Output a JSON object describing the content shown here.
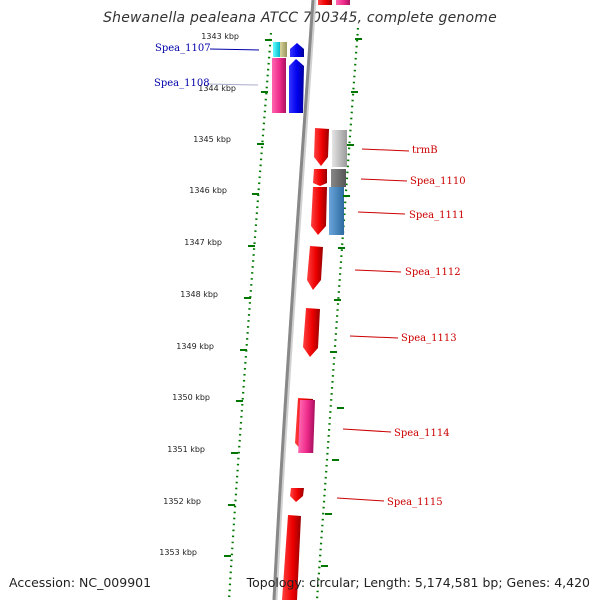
{
  "title": "Shewanella pealeana ATCC 700345, complete genome",
  "accession": "Accession: NC_009901",
  "topology": "Topology: circular; Length: 5,174,581 bp; Genes: 4,420",
  "colors": {
    "forward_label": "#0000aa",
    "reverse_label": "#cc0000",
    "backbone": "#888888",
    "tick": "#007700",
    "red_gene": "#ee0000",
    "blue_gene": "#0000ee",
    "magenta_gene": "#ee2a8a"
  },
  "kbp_ticks": [
    "1343 kbp",
    "1344 kbp",
    "1345 kbp",
    "1346 kbp",
    "1347 kbp",
    "1348 kbp",
    "1349 kbp",
    "1350 kbp",
    "1351 kbp",
    "1352 kbp",
    "1353 kbp"
  ],
  "gene_labels": [
    {
      "text": "Spea_1107",
      "strand": "forward"
    },
    {
      "text": "Spea_1108",
      "strand": "forward"
    },
    {
      "text": "trmB",
      "strand": "reverse"
    },
    {
      "text": "Spea_1110",
      "strand": "reverse"
    },
    {
      "text": "Spea_1111",
      "strand": "reverse"
    },
    {
      "text": "Spea_1112",
      "strand": "reverse"
    },
    {
      "text": "Spea_1113",
      "strand": "reverse"
    },
    {
      "text": "Spea_1114",
      "strand": "reverse"
    },
    {
      "text": "Spea_1115",
      "strand": "reverse"
    }
  ]
}
